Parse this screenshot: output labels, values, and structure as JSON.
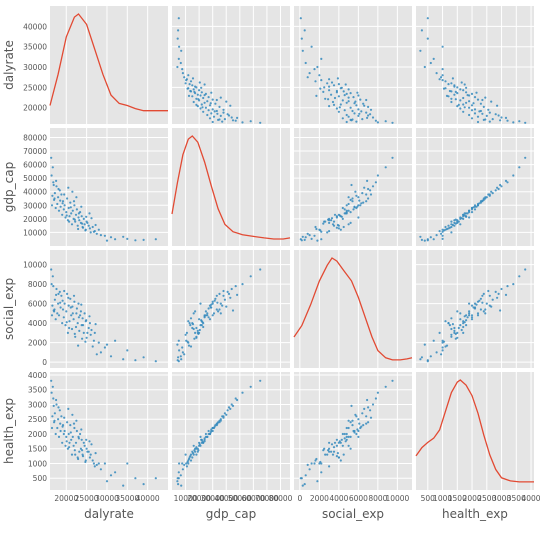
{
  "chart_data": {
    "type": "scatter_matrix",
    "variables": [
      "dalyrate",
      "gdp_cap",
      "social_exp",
      "health_exp"
    ],
    "diagonal": "kde",
    "grid": true,
    "colors": {
      "background": "#e5e5e5",
      "grid": "#ffffff",
      "kde_line": "#e24a33",
      "points": "#348abd",
      "tick_text": "#555555",
      "label_text": "#555555"
    },
    "axes": {
      "dalyrate": {
        "range": [
          16000,
          45000
        ],
        "x_ticks": [
          "20000",
          "25000",
          "30000",
          "35000",
          "40000"
        ],
        "y_ticks": [
          "20000",
          "25000",
          "30000",
          "35000",
          "40000"
        ]
      },
      "gdp_cap": {
        "range": [
          0,
          87000
        ],
        "x_ticks": [
          "10000",
          "20000",
          "30000",
          "40000",
          "50000",
          "60000",
          "70000",
          "80000"
        ],
        "y_ticks": [
          "10000",
          "20000",
          "30000",
          "40000",
          "50000",
          "60000",
          "70000",
          "80000"
        ]
      },
      "social_exp": {
        "range": [
          -600,
          11500
        ],
        "x_ticks": [
          "0",
          "2000",
          "4000",
          "6000",
          "8000",
          "10000"
        ],
        "y_ticks": [
          "0",
          "2000",
          "4000",
          "6000",
          "8000",
          "10000"
        ]
      },
      "health_exp": {
        "range": [
          100,
          4100
        ],
        "x_ticks": [
          "500",
          "1000",
          "1500",
          "2000",
          "2500",
          "3000",
          "3500",
          "4000"
        ],
        "y_ticks": [
          "500",
          "1000",
          "1500",
          "2000",
          "2500",
          "3000",
          "3500",
          "4000"
        ]
      }
    },
    "kde": {
      "dalyrate": [
        [
          16000,
          0.12
        ],
        [
          18000,
          0.42
        ],
        [
          20000,
          0.78
        ],
        [
          22000,
          0.97
        ],
        [
          23000,
          1.0
        ],
        [
          25000,
          0.9
        ],
        [
          27000,
          0.66
        ],
        [
          29000,
          0.42
        ],
        [
          31000,
          0.22
        ],
        [
          33000,
          0.14
        ],
        [
          35000,
          0.12
        ],
        [
          37000,
          0.09
        ],
        [
          39000,
          0.07
        ],
        [
          41000,
          0.07
        ],
        [
          43000,
          0.07
        ],
        [
          45000,
          0.07
        ]
      ],
      "gdp_cap": [
        [
          0,
          0.25
        ],
        [
          4000,
          0.55
        ],
        [
          8000,
          0.82
        ],
        [
          12000,
          0.97
        ],
        [
          15000,
          1.0
        ],
        [
          19000,
          0.94
        ],
        [
          24000,
          0.75
        ],
        [
          29000,
          0.52
        ],
        [
          34000,
          0.3
        ],
        [
          39000,
          0.15
        ],
        [
          45000,
          0.08
        ],
        [
          52000,
          0.05
        ],
        [
          60000,
          0.035
        ],
        [
          68000,
          0.02
        ],
        [
          75000,
          0.01
        ],
        [
          82000,
          0.01
        ],
        [
          87000,
          0.02
        ]
      ],
      "social_exp": [
        [
          -600,
          0.24
        ],
        [
          200,
          0.35
        ],
        [
          1100,
          0.55
        ],
        [
          2000,
          0.78
        ],
        [
          2800,
          0.93
        ],
        [
          3300,
          1.0
        ],
        [
          3800,
          0.97
        ],
        [
          4500,
          0.88
        ],
        [
          5300,
          0.78
        ],
        [
          6000,
          0.62
        ],
        [
          6700,
          0.43
        ],
        [
          7400,
          0.24
        ],
        [
          8000,
          0.11
        ],
        [
          8800,
          0.04
        ],
        [
          9500,
          0.02
        ],
        [
          10300,
          0.02
        ],
        [
          11000,
          0.03
        ],
        [
          11500,
          0.04
        ]
      ],
      "health_exp": [
        [
          100,
          0.27
        ],
        [
          300,
          0.35
        ],
        [
          500,
          0.4
        ],
        [
          700,
          0.44
        ],
        [
          900,
          0.52
        ],
        [
          1100,
          0.7
        ],
        [
          1300,
          0.88
        ],
        [
          1500,
          0.98
        ],
        [
          1600,
          1.0
        ],
        [
          1800,
          0.95
        ],
        [
          2000,
          0.85
        ],
        [
          2200,
          0.68
        ],
        [
          2400,
          0.47
        ],
        [
          2600,
          0.28
        ],
        [
          2800,
          0.14
        ],
        [
          3000,
          0.06
        ],
        [
          3300,
          0.03
        ],
        [
          3600,
          0.02
        ],
        [
          4100,
          0.02
        ]
      ]
    },
    "observations": [
      [
        42000,
        5000,
        100,
        500
      ],
      [
        39000,
        4500,
        500,
        300
      ],
      [
        37000,
        4200,
        200,
        500
      ],
      [
        35000,
        5200,
        1200,
        1000
      ],
      [
        34000,
        6800,
        300,
        250
      ],
      [
        32000,
        5000,
        2200,
        700
      ],
      [
        31000,
        6500,
        600,
        600
      ],
      [
        30000,
        4000,
        1800,
        400
      ],
      [
        29500,
        7500,
        1500,
        1000
      ],
      [
        28000,
        12000,
        2000,
        1000
      ],
      [
        27500,
        9000,
        800,
        950
      ],
      [
        27000,
        11000,
        3000,
        900
      ],
      [
        26500,
        14000,
        1600,
        1100
      ],
      [
        26000,
        10000,
        2800,
        1300
      ],
      [
        25800,
        13000,
        4000,
        1200
      ],
      [
        25500,
        15000,
        3500,
        1400
      ],
      [
        25000,
        18000,
        2500,
        1500
      ],
      [
        24800,
        12000,
        4200,
        1100
      ],
      [
        24500,
        16000,
        5000,
        1600
      ],
      [
        24300,
        20000,
        3000,
        1700
      ],
      [
        24000,
        14000,
        4500,
        1300
      ],
      [
        23800,
        22000,
        3800,
        1800
      ],
      [
        23600,
        17000,
        5200,
        1500
      ],
      [
        23400,
        25000,
        4800,
        2000
      ],
      [
        23200,
        19000,
        3200,
        1400
      ],
      [
        23000,
        21000,
        6000,
        1900
      ],
      [
        22800,
        15000,
        4000,
        1200
      ],
      [
        22600,
        27000,
        5500,
        2100
      ],
      [
        22400,
        23000,
        3600,
        1700
      ],
      [
        22200,
        18000,
        2600,
        1300
      ],
      [
        22000,
        30000,
        6200,
        2200
      ],
      [
        21800,
        20000,
        4400,
        1600
      ],
      [
        21600,
        26000,
        5000,
        1900
      ],
      [
        21400,
        16000,
        3400,
        1300
      ],
      [
        21200,
        24000,
        4800,
        1800
      ],
      [
        21000,
        32000,
        6500,
        2300
      ],
      [
        20800,
        22000,
        4200,
        1700
      ],
      [
        20600,
        28000,
        5800,
        2000
      ],
      [
        20400,
        19000,
        3000,
        1500
      ],
      [
        20200,
        35000,
        7000,
        2400
      ],
      [
        20000,
        25000,
        5200,
        1900
      ],
      [
        19800,
        21000,
        3800,
        1600
      ],
      [
        19600,
        30000,
        6000,
        2100
      ],
      [
        19400,
        27000,
        4600,
        2000
      ],
      [
        19200,
        33000,
        5400,
        2300
      ],
      [
        19000,
        23000,
        4000,
        1700
      ],
      [
        18800,
        38000,
        6800,
        2600
      ],
      [
        18600,
        29000,
        5600,
        2100
      ],
      [
        18400,
        41000,
        7200,
        2800
      ],
      [
        18200,
        26000,
        4800,
        1900
      ],
      [
        18000,
        36000,
        6000,
        2500
      ],
      [
        17800,
        31000,
        5000,
        2200
      ],
      [
        17600,
        44000,
        7500,
        3000
      ],
      [
        17400,
        28000,
        4400,
        2000
      ],
      [
        17200,
        39000,
        6400,
        2700
      ],
      [
        17000,
        34000,
        5200,
        2400
      ],
      [
        16800,
        47000,
        7800,
        3200
      ],
      [
        16600,
        37000,
        5800,
        2600
      ],
      [
        16500,
        30000,
        4800,
        2200
      ],
      [
        16400,
        52000,
        8000,
        3400
      ],
      [
        28500,
        8000,
        1000,
        800
      ],
      [
        26800,
        10500,
        2200,
        1000
      ],
      [
        25200,
        17000,
        3000,
        1400
      ],
      [
        24100,
        13500,
        3800,
        1250
      ],
      [
        23100,
        24000,
        4600,
        1850
      ],
      [
        22100,
        19500,
        2900,
        1450
      ],
      [
        21100,
        28500,
        5600,
        2050
      ],
      [
        20100,
        22500,
        4100,
        1750
      ],
      [
        19100,
        31500,
        6300,
        2250
      ],
      [
        18100,
        42000,
        7000,
        2900
      ],
      [
        17100,
        35000,
        5400,
        2450
      ],
      [
        16700,
        58000,
        8800,
        3600
      ],
      [
        16300,
        65000,
        9500,
        3800
      ],
      [
        20700,
        18000,
        3500,
        1550
      ],
      [
        21900,
        33000,
        6800,
        2350
      ],
      [
        23700,
        29000,
        5900,
        2150
      ],
      [
        24700,
        11500,
        2100,
        1050
      ],
      [
        25700,
        24000,
        4700,
        1750
      ],
      [
        26200,
        20500,
        3300,
        1650
      ],
      [
        27200,
        15500,
        3900,
        1350
      ],
      [
        22500,
        36000,
        5000,
        2450
      ],
      [
        21500,
        40000,
        5700,
        2650
      ],
      [
        20500,
        43000,
        6600,
        2850
      ],
      [
        19500,
        38000,
        7300,
        2550
      ],
      [
        18500,
        33500,
        6100,
        2350
      ],
      [
        17500,
        48000,
        6900,
        3150
      ],
      [
        16900,
        45000,
        5300,
        2950
      ],
      [
        22900,
        12500,
        1700,
        1150
      ],
      [
        23900,
        16500,
        2400,
        1450
      ],
      [
        24900,
        21500,
        4300,
        1800
      ]
    ]
  }
}
